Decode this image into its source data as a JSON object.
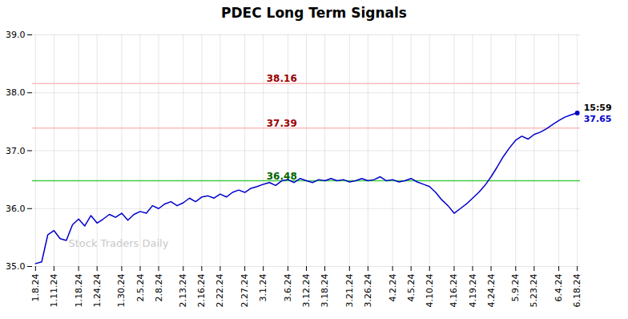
{
  "chart_data": {
    "type": "line",
    "title": "PDEC Long Term Signals",
    "categories": [
      "1.8.24",
      null,
      null,
      "1.11.24",
      null,
      null,
      null,
      "1.18.24",
      null,
      null,
      "1.24.24",
      null,
      null,
      null,
      "1.30.24",
      null,
      null,
      "2.5.24",
      null,
      null,
      "2.8.24",
      null,
      null,
      null,
      "2.13.24",
      null,
      null,
      "2.16.24",
      null,
      null,
      "2.22.24",
      null,
      null,
      null,
      "2.27.24",
      null,
      null,
      "3.1.24",
      null,
      null,
      null,
      "3.6.24",
      null,
      null,
      "3.12.24",
      null,
      null,
      "3.18.24",
      null,
      null,
      null,
      "3.21.24",
      null,
      null,
      "3.26.24",
      null,
      null,
      null,
      "4.2.24",
      null,
      null,
      "4.5.24",
      null,
      null,
      "4.10.24",
      null,
      null,
      null,
      "4.16.24",
      null,
      null,
      "4.19.24",
      null,
      null,
      "4.24.24",
      null,
      null,
      null,
      "5.9.24",
      null,
      null,
      "5.23.24",
      null,
      null,
      null,
      "6.4.24",
      null,
      null,
      "6.18.24"
    ],
    "values": [
      35.05,
      35.08,
      35.55,
      35.62,
      35.48,
      35.45,
      35.72,
      35.82,
      35.7,
      35.88,
      35.75,
      35.82,
      35.9,
      35.85,
      35.92,
      35.8,
      35.9,
      35.95,
      35.92,
      36.05,
      36.0,
      36.08,
      36.12,
      36.05,
      36.1,
      36.18,
      36.12,
      36.2,
      36.22,
      36.18,
      36.25,
      36.2,
      36.28,
      36.32,
      36.28,
      36.35,
      36.38,
      36.42,
      36.45,
      36.4,
      36.48,
      36.5,
      36.45,
      36.52,
      36.48,
      36.45,
      36.5,
      36.48,
      36.52,
      36.48,
      36.5,
      36.46,
      36.48,
      36.52,
      36.48,
      36.5,
      36.55,
      36.48,
      36.5,
      36.46,
      36.48,
      36.52,
      36.46,
      36.42,
      36.38,
      36.28,
      36.15,
      36.05,
      35.92,
      36.0,
      36.08,
      36.18,
      36.28,
      36.4,
      36.55,
      36.72,
      36.9,
      37.05,
      37.18,
      37.25,
      37.2,
      37.28,
      37.32,
      37.38,
      37.45,
      37.52,
      37.58,
      37.62,
      37.65
    ],
    "color": "#0000cc",
    "ylim": [
      35,
      39
    ],
    "yticks": [
      35,
      36,
      37,
      38,
      39
    ],
    "grid": true,
    "hlines": [
      {
        "value": 38.16,
        "label": "38.16",
        "color": "#ffbbbb",
        "label_color": "#990000"
      },
      {
        "value": 37.39,
        "label": "37.39",
        "color": "#ffbbbb",
        "label_color": "#990000"
      },
      {
        "value": 36.48,
        "label": "36.48",
        "color": "#44cc44",
        "label_color": "#006600"
      }
    ],
    "annotations": [
      {
        "text": "15:59",
        "y": 37.65,
        "color": "#000000"
      },
      {
        "text": "37.65",
        "y": 37.65,
        "color": "#0000cc"
      }
    ],
    "watermark": {
      "text": "Stock Traders Daily",
      "color": "#c8c8c8"
    }
  }
}
